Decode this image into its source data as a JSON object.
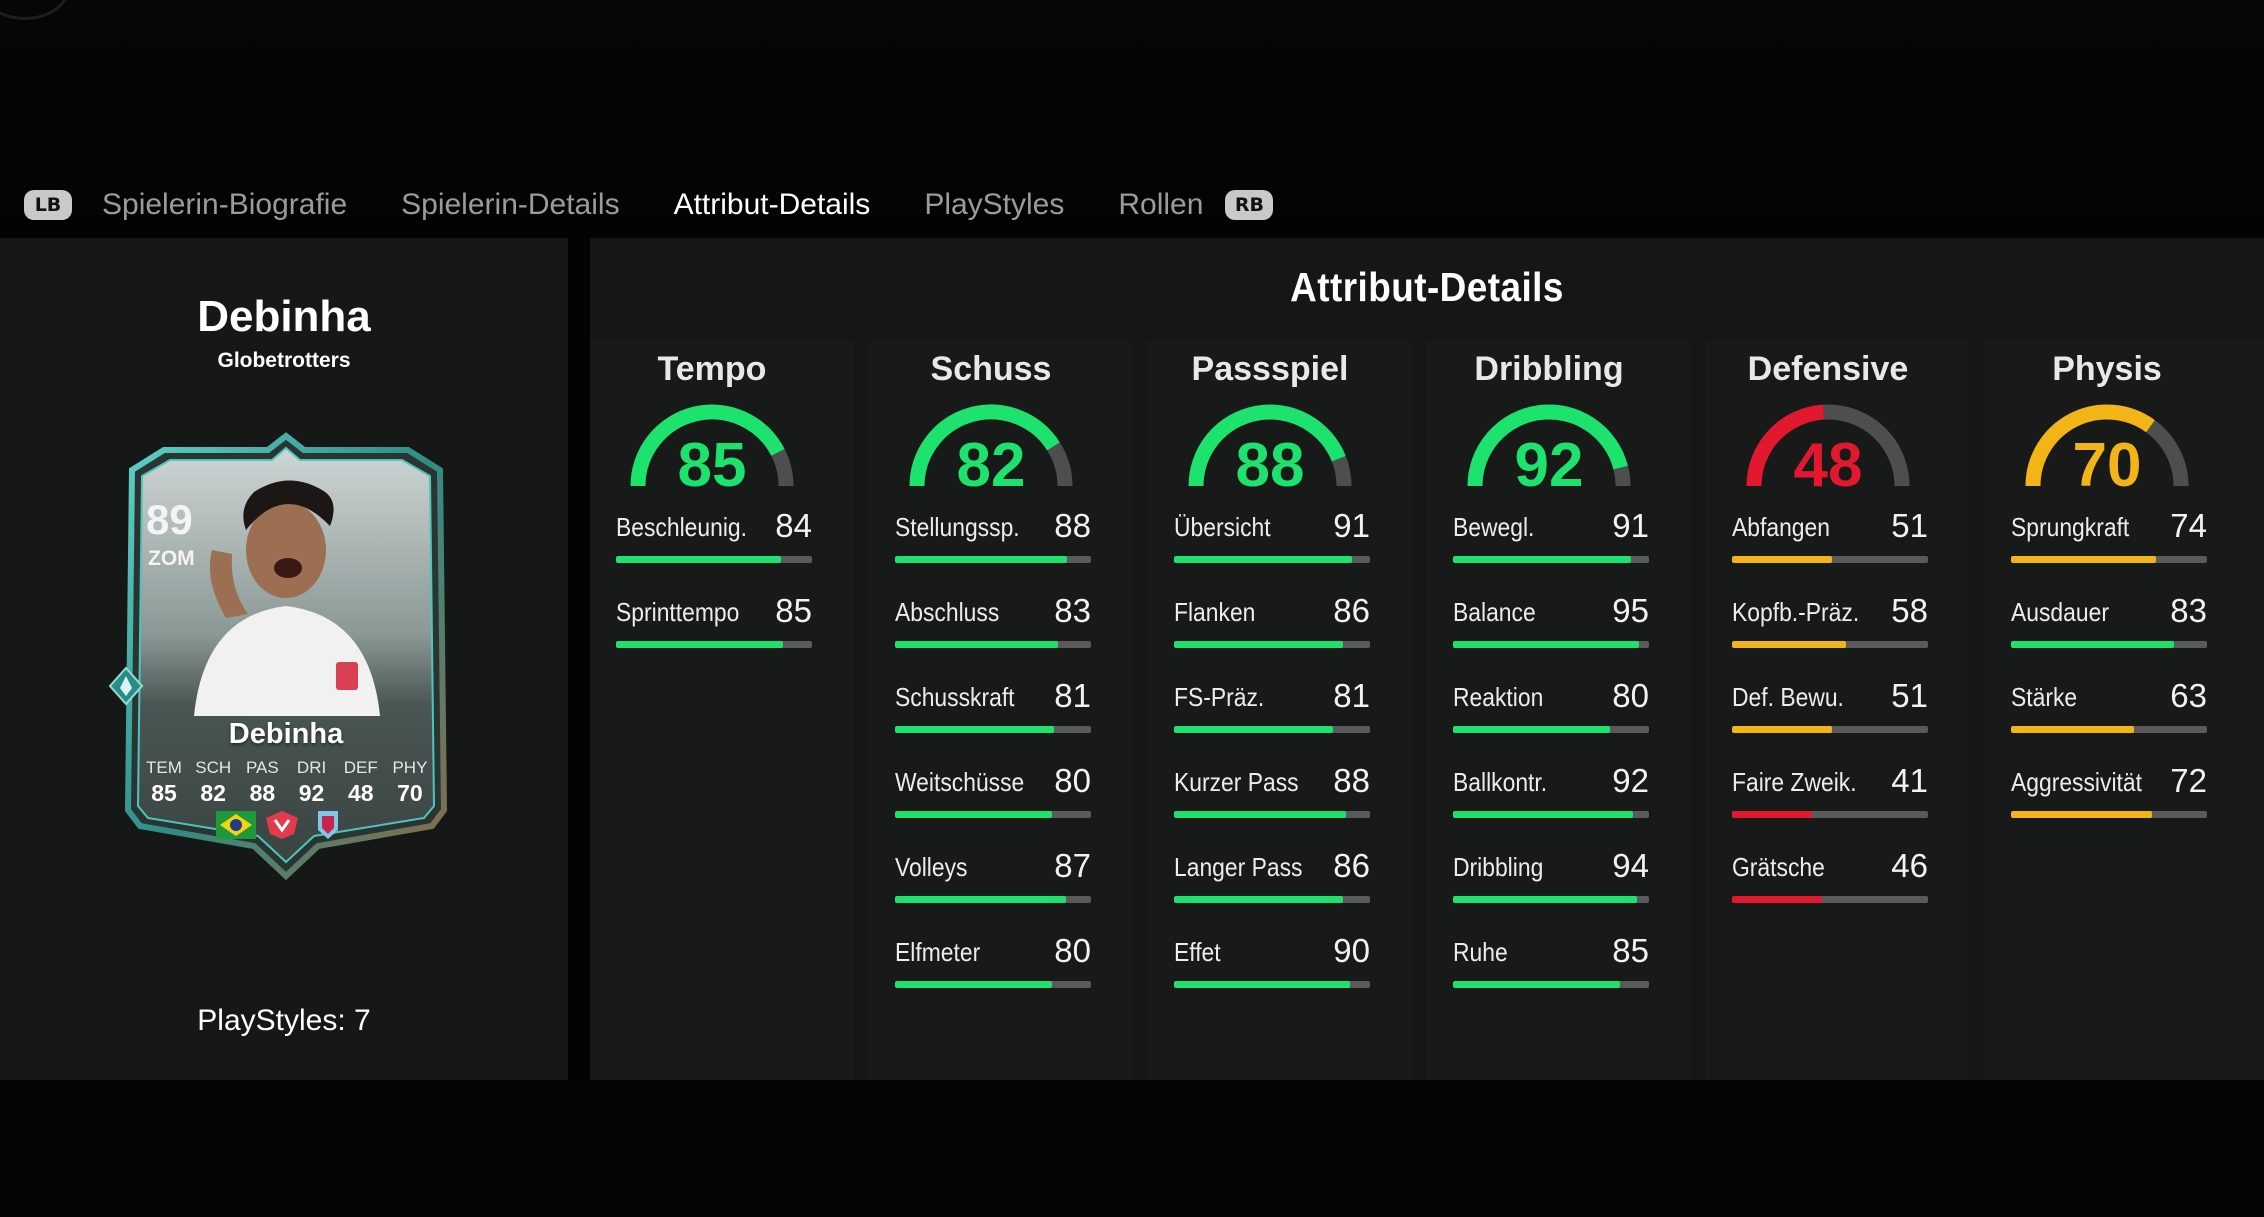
{
  "tabs": {
    "left_bumper": "LB",
    "right_bumper": "RB",
    "items": [
      {
        "label": "Spielerin-Biografie",
        "active": false
      },
      {
        "label": "Spielerin-Details",
        "active": false
      },
      {
        "label": "Attribut-Details",
        "active": true
      },
      {
        "label": "PlayStyles",
        "active": false
      },
      {
        "label": "Rollen",
        "active": false
      }
    ]
  },
  "player": {
    "name": "Debinha",
    "club_label": "Globetrotters",
    "playstyles_label": "PlayStyles: 7"
  },
  "card": {
    "rating": "89",
    "position": "ZOM",
    "name": "Debinha",
    "stats": [
      {
        "label": "TEM",
        "value": "85"
      },
      {
        "label": "SCH",
        "value": "82"
      },
      {
        "label": "PAS",
        "value": "88"
      },
      {
        "label": "DRI",
        "value": "92"
      },
      {
        "label": "DEF",
        "value": "48"
      },
      {
        "label": "PHY",
        "value": "70"
      }
    ],
    "badges": [
      "brazil-flag-icon",
      "league-crest-icon",
      "club-crest-icon"
    ]
  },
  "section_title": "Attribut-Details",
  "colors": {
    "high": "#1ee26e",
    "mid": "#f2b417",
    "low": "#e2182f",
    "track": "#5a5a5a",
    "accent_teal": "#43b3a9"
  },
  "categories": [
    {
      "title": "Tempo",
      "value": 85,
      "attributes": [
        {
          "name": "Beschleunig.",
          "value": 84
        },
        {
          "name": "Sprinttempo",
          "value": 85
        }
      ]
    },
    {
      "title": "Schuss",
      "value": 82,
      "attributes": [
        {
          "name": "Stellungssp.",
          "value": 88
        },
        {
          "name": "Abschluss",
          "value": 83
        },
        {
          "name": "Schusskraft",
          "value": 81
        },
        {
          "name": "Weitschüsse",
          "value": 80
        },
        {
          "name": "Volleys",
          "value": 87
        },
        {
          "name": "Elfmeter",
          "value": 80
        }
      ]
    },
    {
      "title": "Passspiel",
      "value": 88,
      "attributes": [
        {
          "name": "Übersicht",
          "value": 91
        },
        {
          "name": "Flanken",
          "value": 86
        },
        {
          "name": "FS-Präz.",
          "value": 81
        },
        {
          "name": "Kurzer Pass",
          "value": 88
        },
        {
          "name": "Langer Pass",
          "value": 86
        },
        {
          "name": "Effet",
          "value": 90
        }
      ]
    },
    {
      "title": "Dribbling",
      "value": 92,
      "attributes": [
        {
          "name": "Bewegl.",
          "value": 91
        },
        {
          "name": "Balance",
          "value": 95
        },
        {
          "name": "Reaktion",
          "value": 80
        },
        {
          "name": "Ballkontr.",
          "value": 92
        },
        {
          "name": "Dribbling",
          "value": 94
        },
        {
          "name": "Ruhe",
          "value": 85
        }
      ]
    },
    {
      "title": "Defensive",
      "value": 48,
      "attributes": [
        {
          "name": "Abfangen",
          "value": 51
        },
        {
          "name": "Kopfb.-Präz.",
          "value": 58
        },
        {
          "name": "Def. Bewu.",
          "value": 51
        },
        {
          "name": "Faire Zweik.",
          "value": 41
        },
        {
          "name": "Grätsche",
          "value": 46
        }
      ]
    },
    {
      "title": "Physis",
      "value": 70,
      "attributes": [
        {
          "name": "Sprungkraft",
          "value": 74
        },
        {
          "name": "Ausdauer",
          "value": 83
        },
        {
          "name": "Stärke",
          "value": 63
        },
        {
          "name": "Aggressivität",
          "value": 72
        }
      ]
    }
  ]
}
